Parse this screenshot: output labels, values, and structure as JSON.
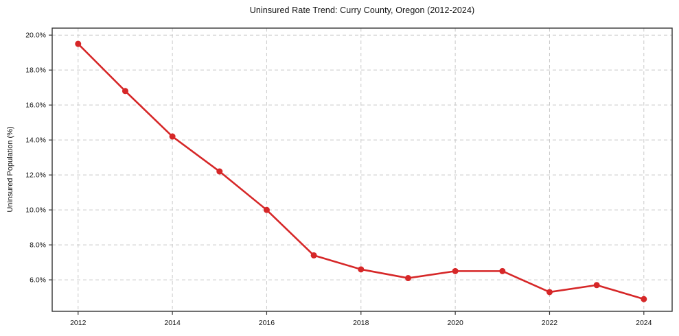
{
  "chart_data": {
    "type": "line",
    "title": "Uninsured Rate Trend: Curry County, Oregon (2012-2024)",
    "xlabel": "",
    "ylabel": "Uninsured Population (%)",
    "x": [
      2012,
      2013,
      2014,
      2015,
      2016,
      2017,
      2018,
      2019,
      2020,
      2021,
      2022,
      2023,
      2024
    ],
    "values": [
      19.5,
      16.8,
      14.2,
      12.2,
      10.0,
      7.4,
      6.6,
      6.1,
      6.5,
      6.5,
      5.3,
      5.7,
      4.9
    ],
    "x_ticks": [
      2012,
      2014,
      2016,
      2018,
      2020,
      2022,
      2024
    ],
    "x_tick_labels": [
      "2012",
      "2014",
      "2016",
      "2018",
      "2020",
      "2022",
      "2024"
    ],
    "y_ticks": [
      6,
      8,
      10,
      12,
      14,
      16,
      18,
      20
    ],
    "y_tick_labels": [
      "6.0%",
      "8.0%",
      "10.0%",
      "12.0%",
      "14.0%",
      "16.0%",
      "18.0%",
      "20.0%"
    ],
    "xlim": [
      2011.45,
      2024.6
    ],
    "ylim": [
      4.2,
      20.4
    ],
    "grid": true,
    "grid_style": "dashed",
    "legend_position": "none",
    "colors": {
      "line": "#d62728",
      "marker": "#d62728",
      "grid": "#c9c9c9",
      "spine": "#333333",
      "text": "#111111"
    }
  }
}
